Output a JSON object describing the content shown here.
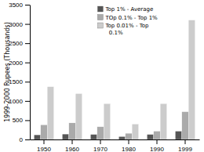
{
  "chart_data": {
    "type": "bar",
    "categories": [
      "1950",
      "1960",
      "1970",
      "1980",
      "1990",
      "1999"
    ],
    "series": [
      {
        "name": "Top 1% - Average",
        "color": "#555555",
        "values": [
          120,
          140,
          130,
          75,
          130,
          215
        ]
      },
      {
        "name": "TOp 0.1% - Top 1%",
        "color": "#aaaaaa",
        "values": [
          380,
          430,
          330,
          160,
          215,
          720
        ]
      },
      {
        "name": "Top 0.01% - Top\n  0.1%",
        "color": "#cccccc",
        "values": [
          1370,
          1190,
          930,
          400,
          930,
          3100
        ]
      }
    ],
    "ylabel": "1999-2000 Rupees (Thousands)",
    "ylim": [
      0,
      3500
    ],
    "yticks": [
      0,
      500,
      1000,
      1500,
      2000,
      2500,
      3000,
      3500
    ],
    "legend": "top"
  }
}
